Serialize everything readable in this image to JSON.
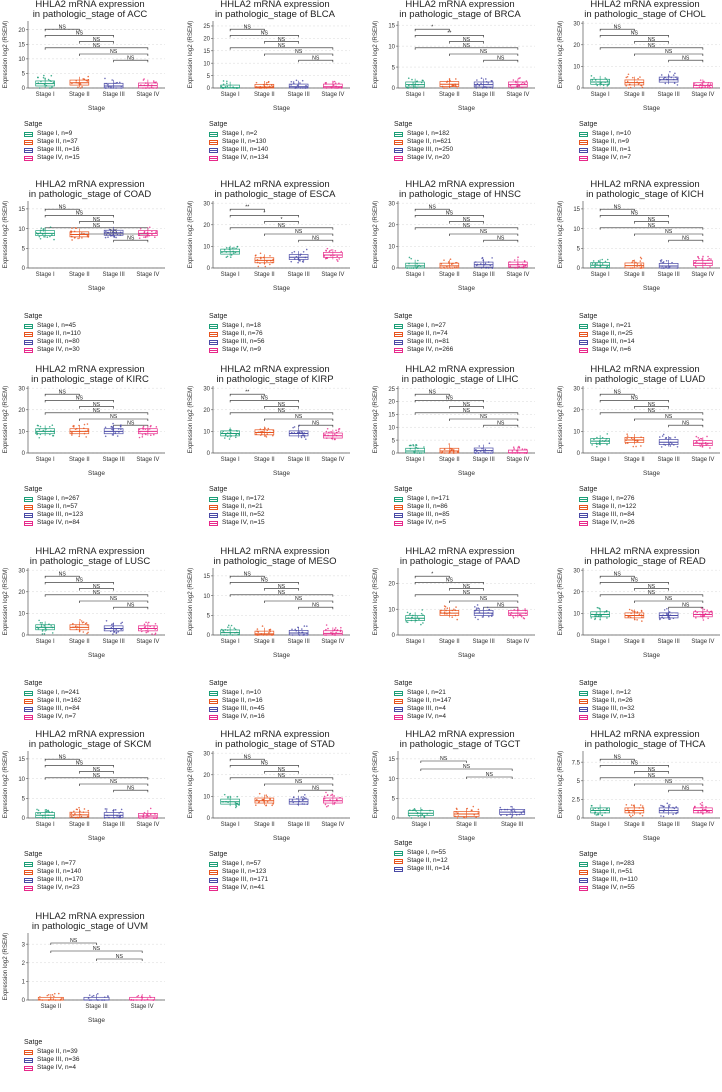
{
  "figure": {
    "title_line1": "HHLA2 mRNA expression",
    "stage_colors": {
      "Stage I": "#1b9e77",
      "Stage II": "#e7541e",
      "Stage III": "#4a4aa6",
      "Stage IV": "#e7298a"
    },
    "background": "#ffffff"
  },
  "chart_data": [
    {
      "type": "box",
      "title_line1": "HHLA2 mRNA expression",
      "title_line2": "in pathologic_stage of ACC",
      "xlabel": "Stage",
      "ylabel": "Expression log2 (RSEM)",
      "yticks": [
        0,
        5,
        10,
        15,
        20
      ],
      "ylim": [
        0,
        23
      ],
      "categories": [
        "Stage I",
        "Stage II",
        "Stage III",
        "Stage IV"
      ],
      "medians": [
        1.5,
        1.8,
        0.7,
        0.8
      ],
      "comparisons": [
        "NS",
        "NS",
        "NS",
        "NS",
        "NS",
        "NS"
      ],
      "legend_title": "Satge",
      "legend": [
        "Stage I, n=9",
        "Stage II, n=37",
        "Stage III, n=16",
        "Stage IV, n=15"
      ]
    },
    {
      "type": "box",
      "title_line1": "HHLA2 mRNA expression",
      "title_line2": "in pathologic_stage of BLCA",
      "xlabel": "Stage",
      "ylabel": "Expression log2 (RSEM)",
      "yticks": [
        0,
        5,
        10,
        15,
        20,
        25
      ],
      "ylim": [
        0,
        27
      ],
      "categories": [
        "Stage I",
        "Stage II",
        "Stage III",
        "Stage IV"
      ],
      "medians": [
        0.1,
        0.4,
        0.5,
        0.5
      ],
      "comparisons": [
        "NS",
        "NS",
        "NS",
        "NS",
        "NS",
        "NS"
      ],
      "legend_title": "Satge",
      "legend": [
        "Stage I, n=2",
        "Stage II, n=130",
        "Stage III, n=140",
        "Stage IV, n=134"
      ]
    },
    {
      "type": "box",
      "title_line1": "HHLA2 mRNA expression",
      "title_line2": "in pathologic_stage of BRCA",
      "xlabel": "Stage",
      "ylabel": "Expression log2 (RSEM)",
      "yticks": [
        0,
        5,
        10,
        15
      ],
      "ylim": [
        0,
        16
      ],
      "categories": [
        "Stage I",
        "Stage II",
        "Stage III",
        "Stage IV"
      ],
      "medians": [
        0.8,
        0.9,
        0.8,
        0.8
      ],
      "comparisons": [
        "*",
        "**",
        "NS",
        "NS",
        "NS",
        "NS"
      ],
      "legend_title": "Satge",
      "legend": [
        "Stage I, n=182",
        "Stage II, n=621",
        "Stage III, n=250",
        "Stage IV, n=20"
      ]
    },
    {
      "type": "box",
      "title_line1": "HHLA2 mRNA expression",
      "title_line2": "in pathologic_stage of CHOL",
      "xlabel": "Stage",
      "ylabel": "Expression log2 (RSEM)",
      "yticks": [
        0,
        10,
        20,
        30
      ],
      "ylim": [
        0,
        31
      ],
      "categories": [
        "Stage I",
        "Stage II",
        "Stage III",
        "Stage IV"
      ],
      "medians": [
        2.8,
        2.5,
        3.8,
        1.2
      ],
      "comparisons": [
        "NS",
        "NS",
        "NS",
        "NS",
        "NS",
        "NS"
      ],
      "legend_title": "Satge",
      "legend": [
        "Stage I, n=10",
        "Stage II, n=9",
        "Stage III, n=1",
        "Stage IV, n=7"
      ]
    },
    {
      "type": "box",
      "title_line1": "HHLA2 mRNA expression",
      "title_line2": "in pathologic_stage of COAD",
      "xlabel": "Stage",
      "ylabel": "Expression log2 (RSEM)",
      "yticks": [
        0,
        5,
        10,
        15
      ],
      "ylim": [
        0,
        17
      ],
      "categories": [
        "Stage I",
        "Stage II",
        "Stage III",
        "Stage IV"
      ],
      "medians": [
        8.8,
        8.5,
        8.9,
        8.8
      ],
      "comparisons": [
        "NS",
        "NS",
        "NS",
        "NS",
        "NS",
        "NS"
      ],
      "legend_title": "Satge",
      "legend": [
        "Stage I, n=45",
        "Stage II, n=110",
        "Stage III, n=80",
        "Stage IV, n=30"
      ]
    },
    {
      "type": "box",
      "title_line1": "HHLA2 mRNA expression",
      "title_line2": "in pathologic_stage of ESCA",
      "xlabel": "Stage",
      "ylabel": "Expression log2 (RSEM)",
      "yticks": [
        0,
        10,
        20,
        30
      ],
      "ylim": [
        0,
        31
      ],
      "categories": [
        "Stage I",
        "Stage II",
        "Stage III",
        "Stage IV"
      ],
      "medians": [
        7.5,
        3.5,
        5,
        6
      ],
      "comparisons": [
        "**",
        "*",
        "*",
        "NS",
        "NS",
        "NS"
      ],
      "legend_title": "Satge",
      "legend": [
        "Stage I, n=18",
        "Stage II, n=76",
        "Stage III, n=56",
        "Stage IV, n=9"
      ]
    },
    {
      "type": "box",
      "title_line1": "HHLA2 mRNA expression",
      "title_line2": "in pathologic_stage of HNSC",
      "xlabel": "Stage",
      "ylabel": "Expression log2 (RSEM)",
      "yticks": [
        0,
        10,
        20,
        30
      ],
      "ylim": [
        0,
        31
      ],
      "categories": [
        "Stage I",
        "Stage II",
        "Stage III",
        "Stage IV"
      ],
      "medians": [
        1,
        1,
        1.5,
        1.5
      ],
      "comparisons": [
        "NS",
        "NS",
        "NS",
        "NS",
        "NS",
        "NS"
      ],
      "legend_title": "Satge",
      "legend": [
        "Stage I, n=27",
        "Stage II, n=74",
        "Stage III, n=81",
        "Stage IV, n=266"
      ]
    },
    {
      "type": "box",
      "title_line1": "HHLA2 mRNA expression",
      "title_line2": "in pathologic_stage of KICH",
      "xlabel": "Stage",
      "ylabel": "Expression log2 (RSEM)",
      "yticks": [
        0,
        5,
        10,
        15
      ],
      "ylim": [
        0,
        17
      ],
      "categories": [
        "Stage I",
        "Stage II",
        "Stage III",
        "Stage IV"
      ],
      "medians": [
        0.7,
        0.6,
        0.5,
        1.2
      ],
      "comparisons": [
        "NS",
        "NS",
        "NS",
        "NS",
        "NS",
        "NS"
      ],
      "legend_title": "Satge",
      "legend": [
        "Stage I, n=21",
        "Stage II, n=25",
        "Stage III, n=14",
        "Stage IV, n=6"
      ]
    },
    {
      "type": "box",
      "title_line1": "HHLA2 mRNA expression",
      "title_line2": "in pathologic_stage of KIRC",
      "xlabel": "Stage",
      "ylabel": "Expression log2 (RSEM)",
      "yticks": [
        0,
        10,
        20,
        30
      ],
      "ylim": [
        0,
        31
      ],
      "categories": [
        "Stage I",
        "Stage II",
        "Stage III",
        "Stage IV"
      ],
      "medians": [
        10,
        10,
        10,
        10
      ],
      "comparisons": [
        "NS",
        "NS",
        "NS",
        "NS",
        "NS",
        "NS"
      ],
      "legend_title": "Satge",
      "legend": [
        "Stage I, n=267",
        "Stage II, n=57",
        "Stage III, n=123",
        "Stage IV, n=84"
      ]
    },
    {
      "type": "box",
      "title_line1": "HHLA2 mRNA expression",
      "title_line2": "in pathologic_stage of KIRP",
      "xlabel": "Stage",
      "ylabel": "Expression log2 (RSEM)",
      "yticks": [
        0,
        10,
        20,
        30
      ],
      "ylim": [
        0,
        31
      ],
      "categories": [
        "Stage I",
        "Stage II",
        "Stage III",
        "Stage IV"
      ],
      "medians": [
        9,
        9.5,
        9,
        8
      ],
      "comparisons": [
        "**",
        "NS",
        "NS",
        "NS",
        "NS",
        "NS"
      ],
      "legend_title": "Satge",
      "legend": [
        "Stage I, n=172",
        "Stage II, n=21",
        "Stage III, n=52",
        "Stage IV, n=15"
      ]
    },
    {
      "type": "box",
      "title_line1": "HHLA2 mRNA expression",
      "title_line2": "in pathologic_stage of LIHC",
      "xlabel": "Stage",
      "ylabel": "Expression log2 (RSEM)",
      "yticks": [
        0,
        5,
        10,
        15,
        20,
        25
      ],
      "ylim": [
        0,
        26
      ],
      "categories": [
        "Stage I",
        "Stage II",
        "Stage III",
        "Stage IV"
      ],
      "medians": [
        0.8,
        0.8,
        0.9,
        0.1
      ],
      "comparisons": [
        "NS",
        "NS",
        "NS",
        "NS",
        "NS",
        "NS"
      ],
      "legend_title": "Satge",
      "legend": [
        "Stage I, n=171",
        "Stage II, n=86",
        "Stage III, n=85",
        "Stage IV, n=5"
      ]
    },
    {
      "type": "box",
      "title_line1": "HHLA2 mRNA expression",
      "title_line2": "in pathologic_stage of LUAD",
      "xlabel": "Stage",
      "ylabel": "Expression log2 (RSEM)",
      "yticks": [
        0,
        10,
        20,
        30
      ],
      "ylim": [
        0,
        31
      ],
      "categories": [
        "Stage I",
        "Stage II",
        "Stage III",
        "Stage IV"
      ],
      "medians": [
        5.5,
        6,
        5,
        4.5
      ],
      "comparisons": [
        "NS",
        "NS",
        "NS",
        "NS",
        "NS",
        "NS"
      ],
      "legend_title": "Satge",
      "legend": [
        "Stage I, n=276",
        "Stage II, n=122",
        "Stage III, n=84",
        "Stage IV, n=26"
      ]
    },
    {
      "type": "box",
      "title_line1": "HHLA2 mRNA expression",
      "title_line2": "in pathologic_stage of LUSC",
      "xlabel": "Stage",
      "ylabel": "Expression log2 (RSEM)",
      "yticks": [
        0,
        10,
        20,
        30
      ],
      "ylim": [
        0,
        31
      ],
      "categories": [
        "Stage I",
        "Stage II",
        "Stage III",
        "Stage IV"
      ],
      "medians": [
        3.5,
        3.5,
        3,
        3
      ],
      "comparisons": [
        "NS",
        "NS",
        "NS",
        "NS",
        "NS",
        "NS"
      ],
      "legend_title": "Satge",
      "legend": [
        "Stage I, n=241",
        "Stage II, n=162",
        "Stage III, n=84",
        "Stage IV, n=7"
      ]
    },
    {
      "type": "box",
      "title_line1": "HHLA2 mRNA expression",
      "title_line2": "in pathologic_stage of MESO",
      "xlabel": "Stage",
      "ylabel": "Expression log2 (RSEM)",
      "yticks": [
        0,
        5,
        10,
        15
      ],
      "ylim": [
        0,
        17
      ],
      "categories": [
        "Stage I",
        "Stage II",
        "Stage III",
        "Stage IV"
      ],
      "medians": [
        0.6,
        0.3,
        0.5,
        0.4
      ],
      "comparisons": [
        "NS",
        "NS",
        "NS",
        "NS",
        "NS",
        "NS"
      ],
      "legend_title": "Satge",
      "legend": [
        "Stage I, n=10",
        "Stage II, n=16",
        "Stage III, n=45",
        "Stage IV, n=16"
      ]
    },
    {
      "type": "box",
      "title_line1": "HHLA2 mRNA expression",
      "title_line2": "in pathologic_stage of PAAD",
      "xlabel": "Stage",
      "ylabel": "Expression log2 (RSEM)",
      "yticks": [
        0,
        10,
        20
      ],
      "ylim": [
        0,
        26
      ],
      "categories": [
        "Stage I",
        "Stage II",
        "Stage III",
        "Stage IV"
      ],
      "medians": [
        6.5,
        8.5,
        8.5,
        8.5
      ],
      "comparisons": [
        "*",
        "NS",
        "NS",
        "NS",
        "NS",
        "NS"
      ],
      "legend_title": "Satge",
      "legend": [
        "Stage I, n=21",
        "Stage II, n=147",
        "Stage III, n=4",
        "Stage IV, n=4"
      ]
    },
    {
      "type": "box",
      "title_line1": "HHLA2 mRNA expression",
      "title_line2": "in pathologic_stage of READ",
      "xlabel": "Stage",
      "ylabel": "Expression log2 (RSEM)",
      "yticks": [
        0,
        10,
        20,
        30
      ],
      "ylim": [
        0,
        31
      ],
      "categories": [
        "Stage I",
        "Stage II",
        "Stage III",
        "Stage IV"
      ],
      "medians": [
        9.5,
        9,
        9,
        9.5
      ],
      "comparisons": [
        "NS",
        "NS",
        "NS",
        "NS",
        "NS",
        "NS"
      ],
      "legend_title": "Satge",
      "legend": [
        "Stage I, n=12",
        "Stage II, n=26",
        "Stage III, n=32",
        "Stage IV, n=13"
      ]
    },
    {
      "type": "box",
      "title_line1": "HHLA2 mRNA expression",
      "title_line2": "in pathologic_stage of SKCM",
      "xlabel": "Stage",
      "ylabel": "Expression log2 (RSEM)",
      "yticks": [
        0,
        5,
        10,
        15
      ],
      "ylim": [
        0,
        17
      ],
      "categories": [
        "Stage I",
        "Stage II",
        "Stage III",
        "Stage IV"
      ],
      "medians": [
        0.7,
        0.8,
        0.7,
        0.5
      ],
      "comparisons": [
        "NS",
        "NS",
        "NS",
        "NS",
        "NS",
        "NS"
      ],
      "legend_title": "Satge",
      "legend": [
        "Stage I, n=77",
        "Stage II, n=140",
        "Stage III, n=170",
        "Stage IV, n=23"
      ]
    },
    {
      "type": "box",
      "title_line1": "HHLA2 mRNA expression",
      "title_line2": "in pathologic_stage of STAD",
      "xlabel": "Stage",
      "ylabel": "Expression log2 (RSEM)",
      "yticks": [
        0,
        10,
        20,
        30
      ],
      "ylim": [
        0,
        31
      ],
      "categories": [
        "Stage I",
        "Stage II",
        "Stage III",
        "Stage IV"
      ],
      "medians": [
        7.5,
        8,
        7.5,
        8
      ],
      "comparisons": [
        "NS",
        "NS",
        "NS",
        "NS",
        "NS",
        "NS"
      ],
      "legend_title": "Satge",
      "legend": [
        "Stage I, n=57",
        "Stage II, n=123",
        "Stage III, n=171",
        "Stage IV, n=41"
      ]
    },
    {
      "type": "box",
      "title_line1": "HHLA2 mRNA expression",
      "title_line2": "in pathologic_stage of TGCT",
      "xlabel": "Stage",
      "ylabel": "Expression log2 (RSEM)",
      "yticks": [
        0,
        5,
        10,
        15
      ],
      "ylim": [
        0,
        17
      ],
      "categories": [
        "Stage I",
        "Stage II",
        "Stage III"
      ],
      "medians": [
        1.2,
        1,
        1.5
      ],
      "comparisons": [
        "NS",
        "NS",
        "NS"
      ],
      "legend_title": "Satge",
      "legend": [
        "Stage I, n=55",
        "Stage II, n=12",
        "Stage III, n=14"
      ]
    },
    {
      "type": "box",
      "title_line1": "HHLA2 mRNA expression",
      "title_line2": "in pathologic_stage of THCA",
      "xlabel": "Stage",
      "ylabel": "Expression log2 (RSEM)",
      "yticks": [
        0,
        2.5,
        5,
        7.5
      ],
      "ylim": [
        0,
        9
      ],
      "categories": [
        "Stage I",
        "Stage II",
        "Stage III",
        "Stage IV"
      ],
      "medians": [
        1,
        1,
        1,
        1
      ],
      "comparisons": [
        "NS",
        "NS",
        "NS",
        "NS",
        "NS",
        "NS"
      ],
      "legend_title": "Satge",
      "legend": [
        "Stage I, n=283",
        "Stage II, n=51",
        "Stage III, n=110",
        "Stage IV, n=55"
      ]
    },
    {
      "type": "box",
      "title_line1": "HHLA2 mRNA expression",
      "title_line2": "in pathologic_stage of UVM",
      "xlabel": "Stage",
      "ylabel": "Expression log2 (RSEM)",
      "yticks": [
        0,
        1,
        2,
        3
      ],
      "ylim": [
        0,
        3.6
      ],
      "categories": [
        "Stage II",
        "Stage III",
        "Stage IV"
      ],
      "medians": [
        0,
        0,
        0
      ],
      "comparisons": [
        "NS",
        "NS",
        "NS"
      ],
      "legend_title": "Satge",
      "legend": [
        "Stage II, n=39",
        "Stage III, n=36",
        "Stage IV, n=4"
      ]
    }
  ]
}
